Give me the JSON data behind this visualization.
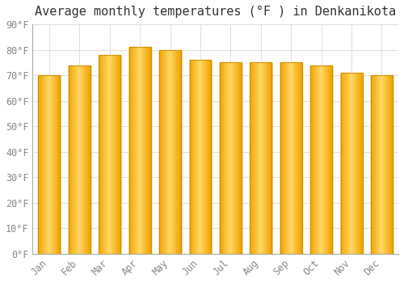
{
  "title": "Average monthly temperatures (°F ) in Denkanikota",
  "months": [
    "Jan",
    "Feb",
    "Mar",
    "Apr",
    "May",
    "Jun",
    "Jul",
    "Aug",
    "Sep",
    "Oct",
    "Nov",
    "Dec"
  ],
  "values": [
    70,
    74,
    78,
    81,
    80,
    76,
    75,
    75,
    75,
    74,
    71,
    70
  ],
  "bar_color_center": "#FFD966",
  "bar_color_edge": "#F0A500",
  "bar_outline_color": "#C8890A",
  "background_color": "#FFFFFF",
  "grid_color": "#E0E0E0",
  "ylim": [
    0,
    90
  ],
  "yticks": [
    0,
    10,
    20,
    30,
    40,
    50,
    60,
    70,
    80,
    90
  ],
  "title_fontsize": 11,
  "tick_fontsize": 8.5,
  "tick_color": "#888888"
}
